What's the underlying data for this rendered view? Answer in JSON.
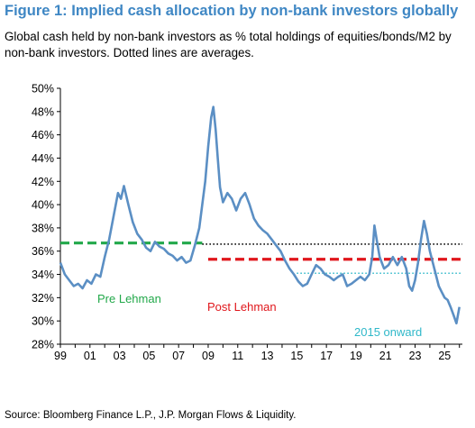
{
  "title": "Figure 1: Implied cash allocation by non-bank investors globally",
  "subtitle": "Global cash held by non-bank investors as % total holdings of equities/bonds/M2 by non-bank investors. Dotted lines are averages.",
  "source": "Source: Bloomberg Finance L.P., J.P. Morgan Flows & Liquidity.",
  "chart_data": {
    "type": "line",
    "title": "",
    "xlabel": "",
    "ylabel": "",
    "ylim": [
      28,
      50
    ],
    "xlim": [
      1999.0,
      2026.2
    ],
    "x_tick_labels": [
      "99",
      "01",
      "03",
      "05",
      "07",
      "09",
      "11",
      "13",
      "15",
      "17",
      "19",
      "21",
      "23",
      "25"
    ],
    "x_tick_years": [
      1999,
      2001,
      2003,
      2005,
      2007,
      2009,
      2011,
      2013,
      2015,
      2017,
      2019,
      2021,
      2023,
      2025
    ],
    "y_ticks": [
      28,
      30,
      32,
      34,
      36,
      38,
      40,
      42,
      44,
      46,
      48,
      50
    ],
    "y_tick_labels": [
      "28%",
      "30%",
      "32%",
      "34%",
      "36%",
      "38%",
      "40%",
      "42%",
      "44%",
      "46%",
      "48%",
      "50%"
    ],
    "series": [
      {
        "color": "#5b8fc4",
        "x": [
          1999.0,
          1999.3,
          1999.6,
          1999.9,
          2000.2,
          2000.5,
          2000.8,
          2001.1,
          2001.4,
          2001.7,
          2002.0,
          2002.3,
          2002.6,
          2002.9,
          2003.1,
          2003.3,
          2003.6,
          2003.9,
          2004.2,
          2004.5,
          2004.8,
          2005.1,
          2005.4,
          2005.7,
          2006.0,
          2006.3,
          2006.6,
          2006.9,
          2007.2,
          2007.5,
          2007.8,
          2008.1,
          2008.4,
          2008.6,
          2008.8,
          2009.0,
          2009.2,
          2009.35,
          2009.5,
          2009.65,
          2009.8,
          2010.0,
          2010.3,
          2010.6,
          2010.9,
          2011.2,
          2011.5,
          2011.8,
          2012.1,
          2012.4,
          2012.7,
          2013.0,
          2013.3,
          2013.6,
          2013.9,
          2014.2,
          2014.5,
          2014.8,
          2015.1,
          2015.4,
          2015.7,
          2016.0,
          2016.3,
          2016.6,
          2016.9,
          2017.2,
          2017.5,
          2017.8,
          2018.1,
          2018.4,
          2018.7,
          2019.0,
          2019.3,
          2019.6,
          2019.9,
          2020.1,
          2020.25,
          2020.4,
          2020.6,
          2020.9,
          2021.2,
          2021.5,
          2021.8,
          2022.1,
          2022.4,
          2022.6,
          2022.8,
          2023.0,
          2023.2,
          2023.4,
          2023.6,
          2023.8,
          2024.0,
          2024.2,
          2024.4,
          2024.6,
          2024.8,
          2025.0,
          2025.2,
          2025.4,
          2025.6,
          2025.8,
          2026.0
        ],
        "values": [
          35.0,
          34.0,
          33.5,
          33.0,
          33.2,
          32.8,
          33.5,
          33.2,
          34.0,
          33.8,
          35.5,
          37.0,
          39.0,
          41.0,
          40.5,
          41.6,
          40.0,
          38.5,
          37.5,
          37.0,
          36.3,
          36.0,
          36.8,
          36.4,
          36.2,
          35.8,
          35.6,
          35.2,
          35.5,
          35.0,
          35.2,
          36.5,
          38.0,
          40.0,
          42.0,
          45.0,
          47.5,
          48.4,
          46.5,
          44.0,
          41.5,
          40.2,
          41.0,
          40.5,
          39.5,
          40.5,
          41.0,
          40.0,
          38.8,
          38.2,
          37.8,
          37.5,
          37.0,
          36.5,
          36.0,
          35.2,
          34.5,
          34.0,
          33.4,
          33.0,
          33.2,
          34.0,
          34.8,
          34.5,
          34.0,
          33.8,
          33.5,
          33.8,
          34.0,
          33.0,
          33.2,
          33.5,
          33.8,
          33.5,
          34.0,
          35.5,
          38.2,
          37.0,
          35.5,
          34.5,
          34.8,
          35.5,
          34.8,
          35.5,
          34.5,
          33.0,
          32.6,
          33.5,
          35.0,
          37.0,
          38.6,
          37.5,
          36.0,
          35.0,
          34.0,
          33.0,
          32.5,
          32.0,
          31.8,
          31.2,
          30.5,
          29.8,
          31.2
        ]
      }
    ],
    "averages": [
      {
        "name": "Pre Lehman",
        "value": 36.7,
        "x_start": 1999.0,
        "x_end": 2008.6,
        "color": "#22a84a",
        "style": "dashed"
      },
      {
        "name": "Post Lehman",
        "value": 35.3,
        "x_start": 2009.0,
        "x_end": 2026.2,
        "color": "#e0161b",
        "style": "dashed"
      },
      {
        "name": "overall average",
        "value": 36.6,
        "x_start": 2008.6,
        "x_end": 2026.2,
        "color": "#000000",
        "style": "dotted"
      },
      {
        "name": "2015 onward",
        "value": 34.1,
        "x_start": 2015.0,
        "x_end": 2026.2,
        "color": "#2fb8c9",
        "style": "dotted"
      }
    ],
    "annotations": [
      {
        "text": "Pre Lehman",
        "color": "#22a84a"
      },
      {
        "text": "Post Lehman",
        "color": "#e0161b"
      },
      {
        "text": "2015 onward",
        "color": "#2fb8c9"
      }
    ],
    "grid": false,
    "legend": "none"
  }
}
